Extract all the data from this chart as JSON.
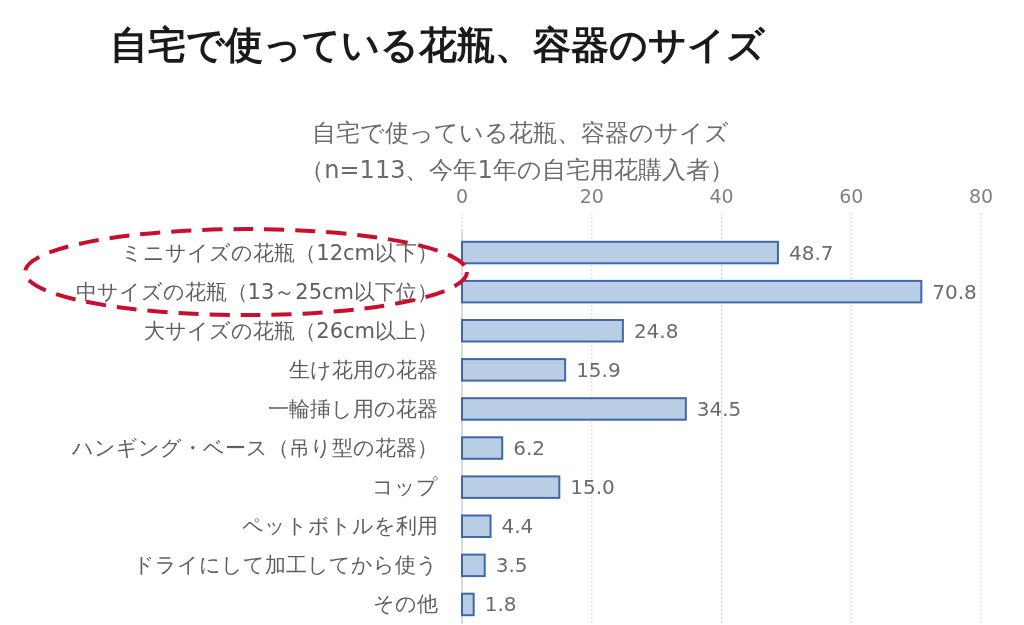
{
  "chart_data": {
    "type": "bar",
    "orientation": "horizontal",
    "title": "自宅で使っている花瓶、容器のサイズ",
    "subtitle": "自宅で使っている花瓶、容器のサイズ",
    "annotations": [
      "（n=113、今年1年の自宅用花購入者）"
    ],
    "categories": [
      "ミニサイズの花瓶（12cm以下）",
      "中サイズの花瓶（13～25cm以下位）",
      "大サイズの花瓶（26cm以上）",
      "生け花用の花器",
      "一輪挿し用の花器",
      "ハンギング・ベース（吊り型の花器）",
      "コップ",
      "ペットボトルを利用",
      "ドライにして加工してから使う",
      "その他"
    ],
    "values": [
      48.7,
      70.8,
      24.8,
      15.9,
      34.5,
      6.2,
      15.0,
      4.4,
      3.5,
      1.8
    ],
    "value_labels": [
      "48.7",
      "70.8",
      "24.8",
      "15.9",
      "34.5",
      "6.2",
      "15.0",
      "4.4",
      "3.5",
      "1.8"
    ],
    "color": "#b9cde5",
    "xlim": [
      0,
      80
    ],
    "xticks": [
      0,
      20,
      40,
      60,
      80
    ],
    "grid": "x"
  }
}
